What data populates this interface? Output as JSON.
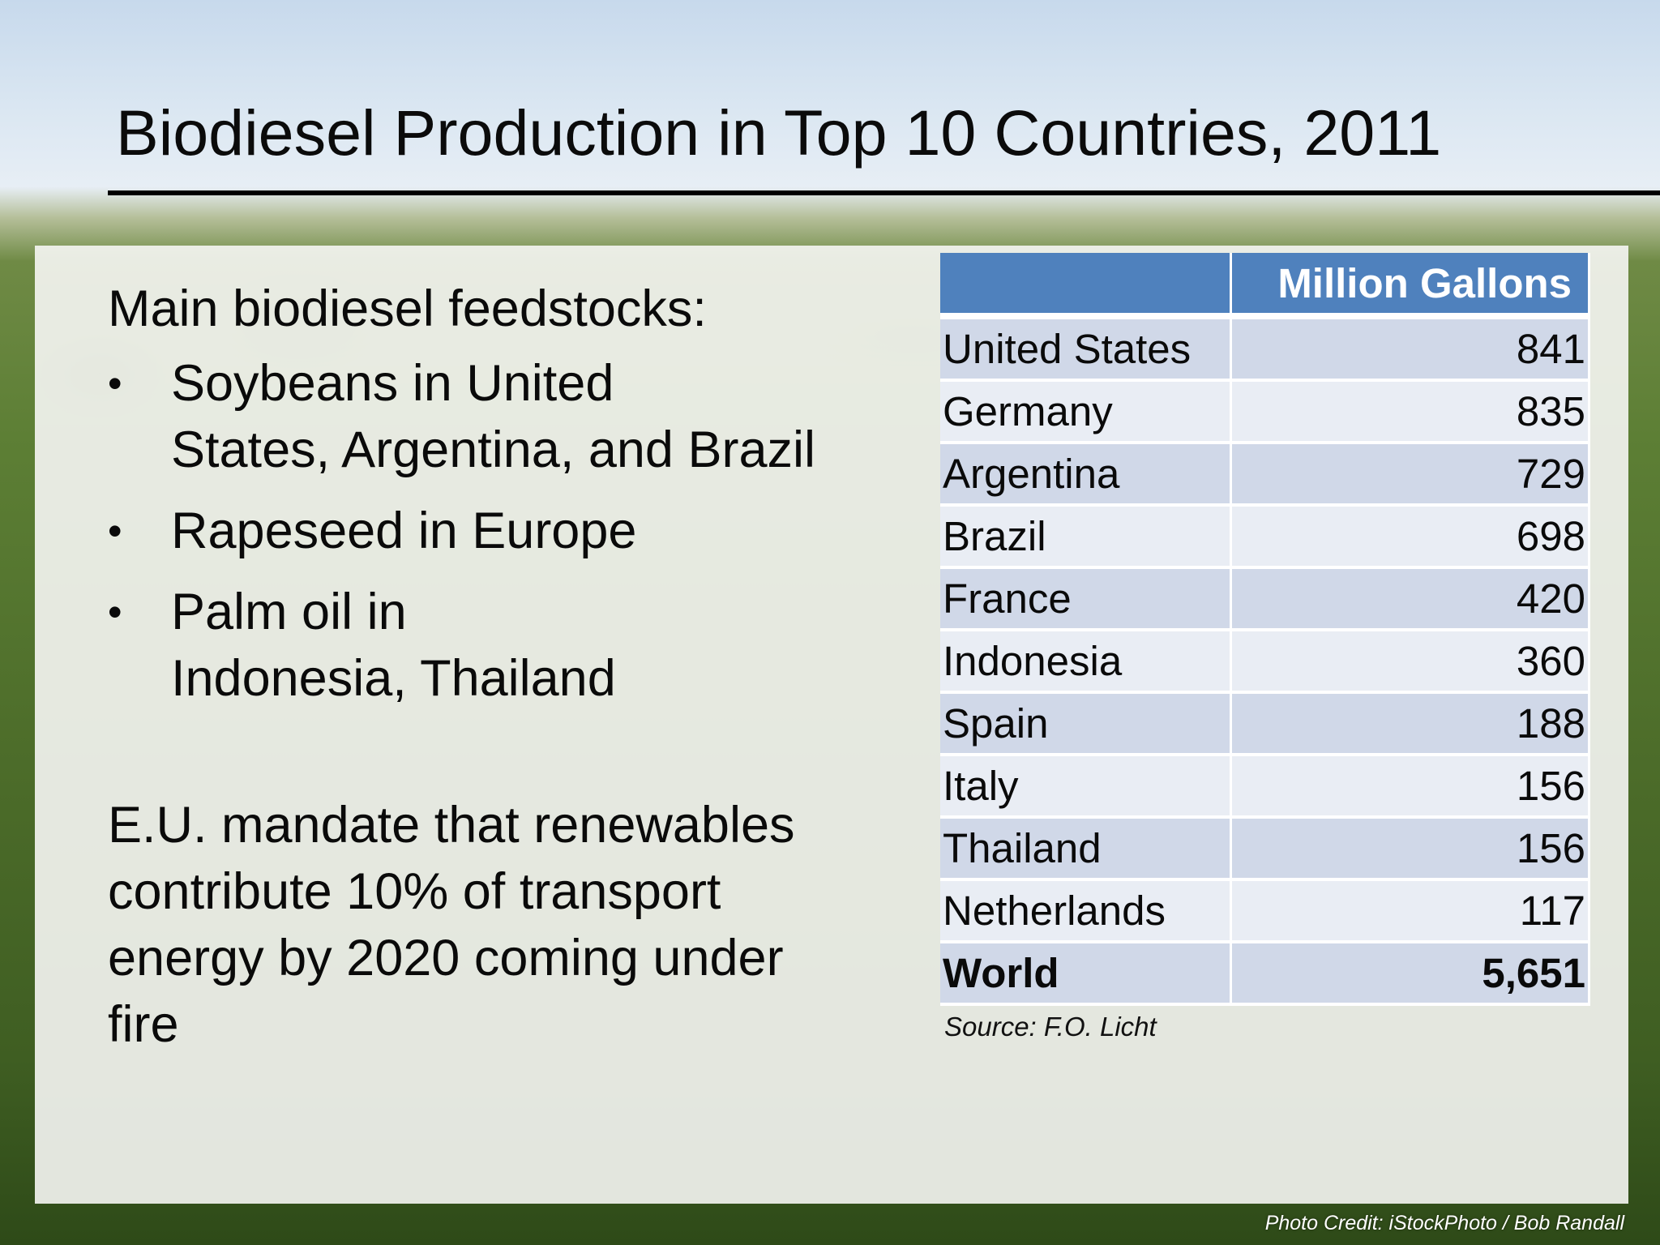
{
  "slide": {
    "title": "Biodiesel Production in Top 10 Countries, 2011"
  },
  "left": {
    "feedstocks_heading": "Main biodiesel feedstocks:",
    "bullet_symbol": "•",
    "bullets": [
      {
        "line1": "Soybeans in United",
        "line2": "States, Argentina, and Brazil"
      },
      {
        "line1": "Rapeseed in Europe",
        "line2": ""
      },
      {
        "line1": "Palm oil in",
        "line2": "Indonesia, Thailand"
      }
    ],
    "mandate_lines": [
      "E.U. mandate that renewables",
      "contribute 10% of transport",
      "energy by 2020 coming under",
      "fire"
    ]
  },
  "table": {
    "col1_header": "",
    "col2_header": "Million Gallons",
    "rows": [
      {
        "country": "United States",
        "value": "841"
      },
      {
        "country": "Germany",
        "value": "835"
      },
      {
        "country": "Argentina",
        "value": "729"
      },
      {
        "country": "Brazil",
        "value": "698"
      },
      {
        "country": "France",
        "value": "420"
      },
      {
        "country": "Indonesia",
        "value": "360"
      },
      {
        "country": "Spain",
        "value": "188"
      },
      {
        "country": "Italy",
        "value": "156"
      },
      {
        "country": "Thailand",
        "value": "156"
      },
      {
        "country": "Netherlands",
        "value": "117"
      }
    ],
    "total": {
      "country": "World",
      "value": "5,651"
    },
    "source": "Source: F.O. Licht"
  },
  "footer": {
    "photo_credit": "Photo Credit: iStockPhoto / Bob Randall"
  },
  "colors": {
    "header_blue": "#4f81bd",
    "row_band_dark": "#d0d8e8",
    "row_band_light": "#e9edf4"
  }
}
